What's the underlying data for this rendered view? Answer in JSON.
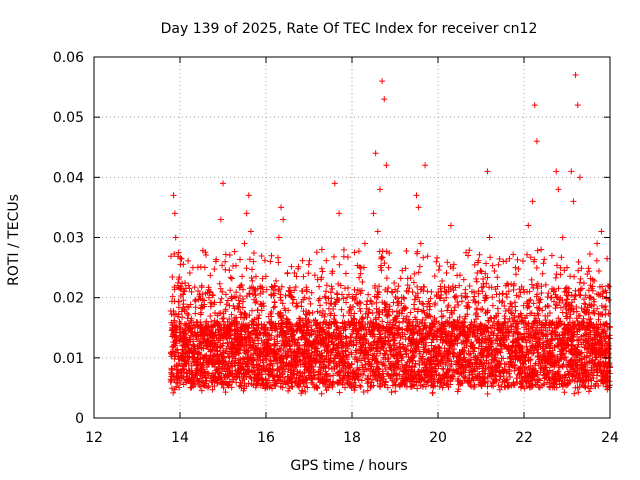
{
  "chart_data": {
    "type": "scatter",
    "title": "Day 139 of 2025, Rate Of TEC Index for receiver cn12",
    "xlabel": "GPS time / hours",
    "ylabel": "ROTI / TECUs",
    "xlim": [
      12,
      24
    ],
    "ylim": [
      0,
      0.06
    ],
    "xticks": [
      "12",
      "14",
      "16",
      "18",
      "20",
      "22",
      "24"
    ],
    "xtick_values": [
      12,
      14,
      16,
      18,
      20,
      22,
      24
    ],
    "yticks": [
      "0",
      "0.01",
      "0.02",
      "0.03",
      "0.04",
      "0.05",
      "0.06"
    ],
    "ytick_values": [
      0,
      0.01,
      0.02,
      0.03,
      0.04,
      0.05,
      0.06
    ],
    "grid": true,
    "marker": "+",
    "marker_color": "#ff0000",
    "series": [
      {
        "name": "ROTI",
        "x": [
          13.8,
          13.82,
          13.85,
          13.88,
          13.9,
          13.95,
          14.0,
          14.05,
          14.1,
          14.2,
          14.3,
          14.4,
          14.5,
          14.6,
          14.7,
          14.8,
          14.9,
          14.95,
          15.0,
          15.05,
          15.1,
          15.2,
          15.3,
          15.4,
          15.5,
          15.55,
          15.6,
          15.65,
          15.7,
          15.8,
          15.9,
          16.0,
          16.1,
          16.2,
          16.3,
          16.35,
          16.4,
          16.5,
          16.6,
          16.7,
          16.8,
          16.9,
          17.0,
          17.1,
          17.2,
          17.3,
          17.4,
          17.5,
          17.6,
          17.7,
          17.8,
          17.9,
          18.0,
          18.1,
          18.2,
          18.3,
          18.4,
          18.5,
          18.55,
          18.6,
          18.65,
          18.7,
          18.75,
          18.8,
          18.85,
          18.9,
          19.0,
          19.1,
          19.2,
          19.3,
          19.4,
          19.5,
          19.55,
          19.6,
          19.7,
          19.8,
          19.9,
          20.0,
          20.1,
          20.2,
          20.3,
          20.4,
          20.5,
          20.6,
          20.7,
          20.8,
          20.9,
          21.0,
          21.1,
          21.15,
          21.2,
          21.3,
          21.4,
          21.5,
          21.6,
          21.7,
          21.8,
          21.9,
          22.0,
          22.1,
          22.2,
          22.25,
          22.3,
          22.4,
          22.5,
          22.6,
          22.7,
          22.75,
          22.8,
          22.9,
          23.0,
          23.1,
          23.15,
          23.2,
          23.25,
          23.3,
          23.4,
          23.5,
          23.6,
          23.7,
          23.8,
          23.9,
          23.98
        ],
        "y": [
          0.008,
          0.015,
          0.037,
          0.034,
          0.03,
          0.022,
          0.01,
          0.012,
          0.018,
          0.009,
          0.025,
          0.011,
          0.008,
          0.014,
          0.021,
          0.012,
          0.009,
          0.033,
          0.039,
          0.026,
          0.015,
          0.011,
          0.02,
          0.013,
          0.029,
          0.034,
          0.037,
          0.031,
          0.016,
          0.01,
          0.008,
          0.014,
          0.012,
          0.022,
          0.03,
          0.035,
          0.033,
          0.024,
          0.011,
          0.009,
          0.015,
          0.02,
          0.012,
          0.008,
          0.023,
          0.028,
          0.013,
          0.01,
          0.039,
          0.034,
          0.017,
          0.012,
          0.009,
          0.014,
          0.024,
          0.029,
          0.018,
          0.034,
          0.044,
          0.031,
          0.038,
          0.056,
          0.053,
          0.042,
          0.025,
          0.012,
          0.009,
          0.015,
          0.02,
          0.012,
          0.008,
          0.037,
          0.035,
          0.029,
          0.042,
          0.018,
          0.011,
          0.009,
          0.014,
          0.021,
          0.032,
          0.015,
          0.01,
          0.023,
          0.027,
          0.012,
          0.009,
          0.018,
          0.024,
          0.041,
          0.03,
          0.016,
          0.011,
          0.008,
          0.013,
          0.019,
          0.025,
          0.012,
          0.009,
          0.032,
          0.036,
          0.052,
          0.046,
          0.028,
          0.015,
          0.011,
          0.021,
          0.041,
          0.038,
          0.03,
          0.025,
          0.041,
          0.036,
          0.057,
          0.052,
          0.04,
          0.019,
          0.012,
          0.023,
          0.029,
          0.031,
          0.018,
          0.01
        ]
      }
    ],
    "note": "Dense cloud of + markers between ~0.004 and ~0.02 from x=13.8 to x=24; listed points are representative sampled values read off the plot."
  }
}
